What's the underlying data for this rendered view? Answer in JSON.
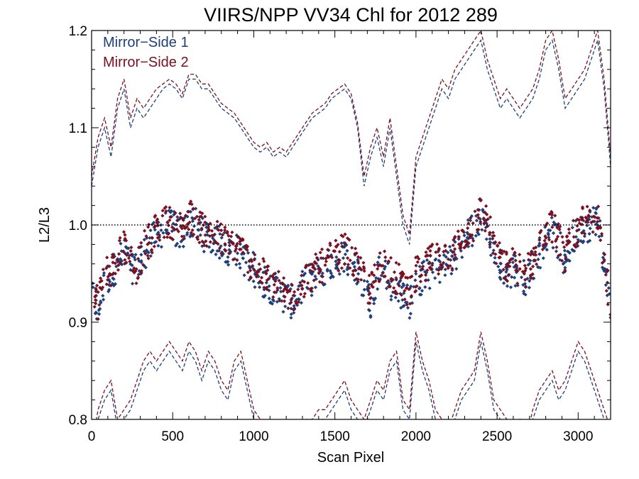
{
  "chart_data": {
    "type": "scatter",
    "title": "VIIRS/NPP VV34 Chl for 2012 289",
    "xlabel": "Scan Pixel",
    "ylabel": "L2/L3",
    "xlim": [
      0,
      3200
    ],
    "ylim": [
      0.8,
      1.2
    ],
    "x_ticks": [
      "0",
      "500",
      "1000",
      "1500",
      "2000",
      "2500",
      "3000"
    ],
    "y_ticks": [
      "0.8",
      "0.9",
      "1.0",
      "1.1",
      "1.2"
    ],
    "reference_line": 1.0,
    "legend_position": "top-left",
    "series": [
      {
        "name": "Mirror−Side 1",
        "color": "#1f3f7a",
        "x": [
          0,
          40,
          80,
          120,
          160,
          200,
          240,
          280,
          320,
          360,
          400,
          440,
          480,
          520,
          560,
          600,
          640,
          680,
          720,
          760,
          800,
          840,
          880,
          920,
          960,
          1000,
          1040,
          1080,
          1120,
          1160,
          1200,
          1240,
          1280,
          1320,
          1360,
          1400,
          1440,
          1480,
          1520,
          1560,
          1600,
          1640,
          1680,
          1720,
          1760,
          1800,
          1840,
          1880,
          1920,
          1960,
          2000,
          2040,
          2080,
          2120,
          2160,
          2200,
          2240,
          2280,
          2320,
          2360,
          2400,
          2440,
          2480,
          2520,
          2560,
          2600,
          2640,
          2680,
          2720,
          2760,
          2800,
          2840,
          2880,
          2920,
          2960,
          3000,
          3040,
          3080,
          3120,
          3160,
          3200
        ],
        "mean": [
          0.93,
          0.91,
          0.94,
          0.95,
          0.96,
          0.97,
          0.96,
          0.95,
          0.97,
          0.98,
          0.99,
          0.995,
          1.0,
          0.995,
          0.99,
          1.005,
          1.0,
          0.99,
          0.99,
          0.985,
          0.98,
          0.975,
          0.975,
          0.97,
          0.96,
          0.955,
          0.945,
          0.94,
          0.935,
          0.93,
          0.925,
          0.92,
          0.93,
          0.94,
          0.945,
          0.95,
          0.955,
          0.96,
          0.965,
          0.97,
          0.96,
          0.95,
          0.94,
          0.92,
          0.95,
          0.96,
          0.94,
          0.935,
          0.93,
          0.92,
          0.94,
          0.945,
          0.95,
          0.96,
          0.955,
          0.96,
          0.97,
          0.98,
          0.99,
          0.995,
          1.01,
          1.0,
          0.97,
          0.96,
          0.95,
          0.955,
          0.95,
          0.945,
          0.96,
          0.97,
          0.99,
          0.995,
          0.98,
          0.96,
          0.985,
          0.99,
          1.0,
          1.0,
          1.01,
          0.96,
          0.91
        ],
        "upper": [
          1.04,
          1.08,
          1.1,
          1.07,
          1.12,
          1.14,
          1.1,
          1.12,
          1.11,
          1.12,
          1.13,
          1.14,
          1.145,
          1.14,
          1.13,
          1.15,
          1.15,
          1.14,
          1.14,
          1.13,
          1.12,
          1.115,
          1.11,
          1.1,
          1.09,
          1.08,
          1.075,
          1.08,
          1.07,
          1.075,
          1.07,
          1.08,
          1.09,
          1.1,
          1.11,
          1.115,
          1.12,
          1.13,
          1.135,
          1.14,
          1.13,
          1.1,
          1.04,
          1.07,
          1.09,
          1.06,
          1.1,
          1.05,
          1.0,
          0.98,
          1.06,
          1.08,
          1.1,
          1.12,
          1.14,
          1.13,
          1.15,
          1.16,
          1.17,
          1.18,
          1.19,
          1.16,
          1.14,
          1.12,
          1.13,
          1.12,
          1.11,
          1.12,
          1.13,
          1.15,
          1.18,
          1.19,
          1.16,
          1.12,
          1.13,
          1.14,
          1.15,
          1.17,
          1.19,
          1.14,
          1.06
        ],
        "lower": [
          0.76,
          0.8,
          0.82,
          0.83,
          0.79,
          0.8,
          0.81,
          0.83,
          0.85,
          0.86,
          0.85,
          0.86,
          0.87,
          0.86,
          0.85,
          0.87,
          0.86,
          0.84,
          0.86,
          0.85,
          0.83,
          0.82,
          0.85,
          0.86,
          0.83,
          0.8,
          0.79,
          0.78,
          0.78,
          0.77,
          0.76,
          0.77,
          0.78,
          0.79,
          0.79,
          0.8,
          0.8,
          0.81,
          0.82,
          0.83,
          0.81,
          0.8,
          0.79,
          0.81,
          0.83,
          0.82,
          0.85,
          0.86,
          0.81,
          0.8,
          0.88,
          0.85,
          0.83,
          0.8,
          0.79,
          0.78,
          0.8,
          0.82,
          0.83,
          0.84,
          0.88,
          0.85,
          0.81,
          0.8,
          0.79,
          0.78,
          0.79,
          0.77,
          0.8,
          0.82,
          0.83,
          0.84,
          0.82,
          0.83,
          0.85,
          0.87,
          0.86,
          0.84,
          0.82,
          0.8,
          0.78
        ]
      },
      {
        "name": "Mirror−Side 2",
        "color": "#7a1020",
        "x": [
          0,
          40,
          80,
          120,
          160,
          200,
          240,
          280,
          320,
          360,
          400,
          440,
          480,
          520,
          560,
          600,
          640,
          680,
          720,
          760,
          800,
          840,
          880,
          920,
          960,
          1000,
          1040,
          1080,
          1120,
          1160,
          1200,
          1240,
          1280,
          1320,
          1360,
          1400,
          1440,
          1480,
          1520,
          1560,
          1600,
          1640,
          1680,
          1720,
          1760,
          1800,
          1840,
          1880,
          1920,
          1960,
          2000,
          2040,
          2080,
          2120,
          2160,
          2200,
          2240,
          2280,
          2320,
          2360,
          2400,
          2440,
          2480,
          2520,
          2560,
          2600,
          2640,
          2680,
          2720,
          2760,
          2800,
          2840,
          2880,
          2920,
          2960,
          3000,
          3040,
          3080,
          3120,
          3160,
          3200
        ],
        "mean": [
          0.94,
          0.92,
          0.95,
          0.955,
          0.97,
          0.98,
          0.965,
          0.955,
          0.975,
          0.985,
          0.995,
          1.0,
          1.005,
          1.0,
          0.995,
          1.01,
          1.005,
          0.995,
          0.995,
          0.99,
          0.985,
          0.98,
          0.98,
          0.975,
          0.965,
          0.96,
          0.95,
          0.945,
          0.94,
          0.935,
          0.93,
          0.925,
          0.935,
          0.945,
          0.95,
          0.955,
          0.96,
          0.965,
          0.97,
          0.975,
          0.965,
          0.955,
          0.945,
          0.93,
          0.955,
          0.965,
          0.95,
          0.945,
          0.94,
          0.93,
          0.95,
          0.955,
          0.96,
          0.965,
          0.96,
          0.965,
          0.975,
          0.985,
          0.995,
          1.0,
          1.015,
          1.005,
          0.975,
          0.965,
          0.955,
          0.96,
          0.955,
          0.95,
          0.965,
          0.975,
          0.995,
          1.0,
          0.985,
          0.965,
          0.99,
          0.995,
          1.005,
          1.005,
          1.015,
          0.965,
          0.915
        ],
        "upper": [
          1.05,
          1.09,
          1.11,
          1.08,
          1.13,
          1.15,
          1.11,
          1.13,
          1.12,
          1.13,
          1.14,
          1.145,
          1.15,
          1.145,
          1.135,
          1.155,
          1.155,
          1.145,
          1.145,
          1.135,
          1.125,
          1.12,
          1.115,
          1.105,
          1.095,
          1.085,
          1.08,
          1.085,
          1.075,
          1.08,
          1.075,
          1.085,
          1.095,
          1.105,
          1.115,
          1.12,
          1.125,
          1.135,
          1.14,
          1.145,
          1.135,
          1.105,
          1.05,
          1.08,
          1.1,
          1.07,
          1.11,
          1.06,
          1.01,
          0.99,
          1.07,
          1.09,
          1.11,
          1.13,
          1.15,
          1.14,
          1.16,
          1.17,
          1.18,
          1.19,
          1.2,
          1.17,
          1.15,
          1.13,
          1.14,
          1.13,
          1.12,
          1.13,
          1.14,
          1.16,
          1.19,
          1.2,
          1.17,
          1.13,
          1.14,
          1.15,
          1.16,
          1.18,
          1.2,
          1.15,
          1.07
        ],
        "lower": [
          0.77,
          0.81,
          0.83,
          0.84,
          0.8,
          0.81,
          0.82,
          0.84,
          0.86,
          0.87,
          0.86,
          0.87,
          0.88,
          0.87,
          0.86,
          0.88,
          0.87,
          0.85,
          0.87,
          0.86,
          0.84,
          0.83,
          0.86,
          0.87,
          0.84,
          0.81,
          0.8,
          0.79,
          0.79,
          0.78,
          0.77,
          0.78,
          0.79,
          0.8,
          0.8,
          0.81,
          0.81,
          0.82,
          0.83,
          0.84,
          0.82,
          0.81,
          0.8,
          0.82,
          0.84,
          0.83,
          0.86,
          0.87,
          0.82,
          0.81,
          0.89,
          0.86,
          0.84,
          0.81,
          0.8,
          0.79,
          0.81,
          0.83,
          0.84,
          0.85,
          0.89,
          0.86,
          0.82,
          0.81,
          0.8,
          0.79,
          0.8,
          0.78,
          0.81,
          0.83,
          0.84,
          0.85,
          0.83,
          0.84,
          0.86,
          0.88,
          0.87,
          0.85,
          0.83,
          0.81,
          0.79
        ]
      }
    ]
  }
}
